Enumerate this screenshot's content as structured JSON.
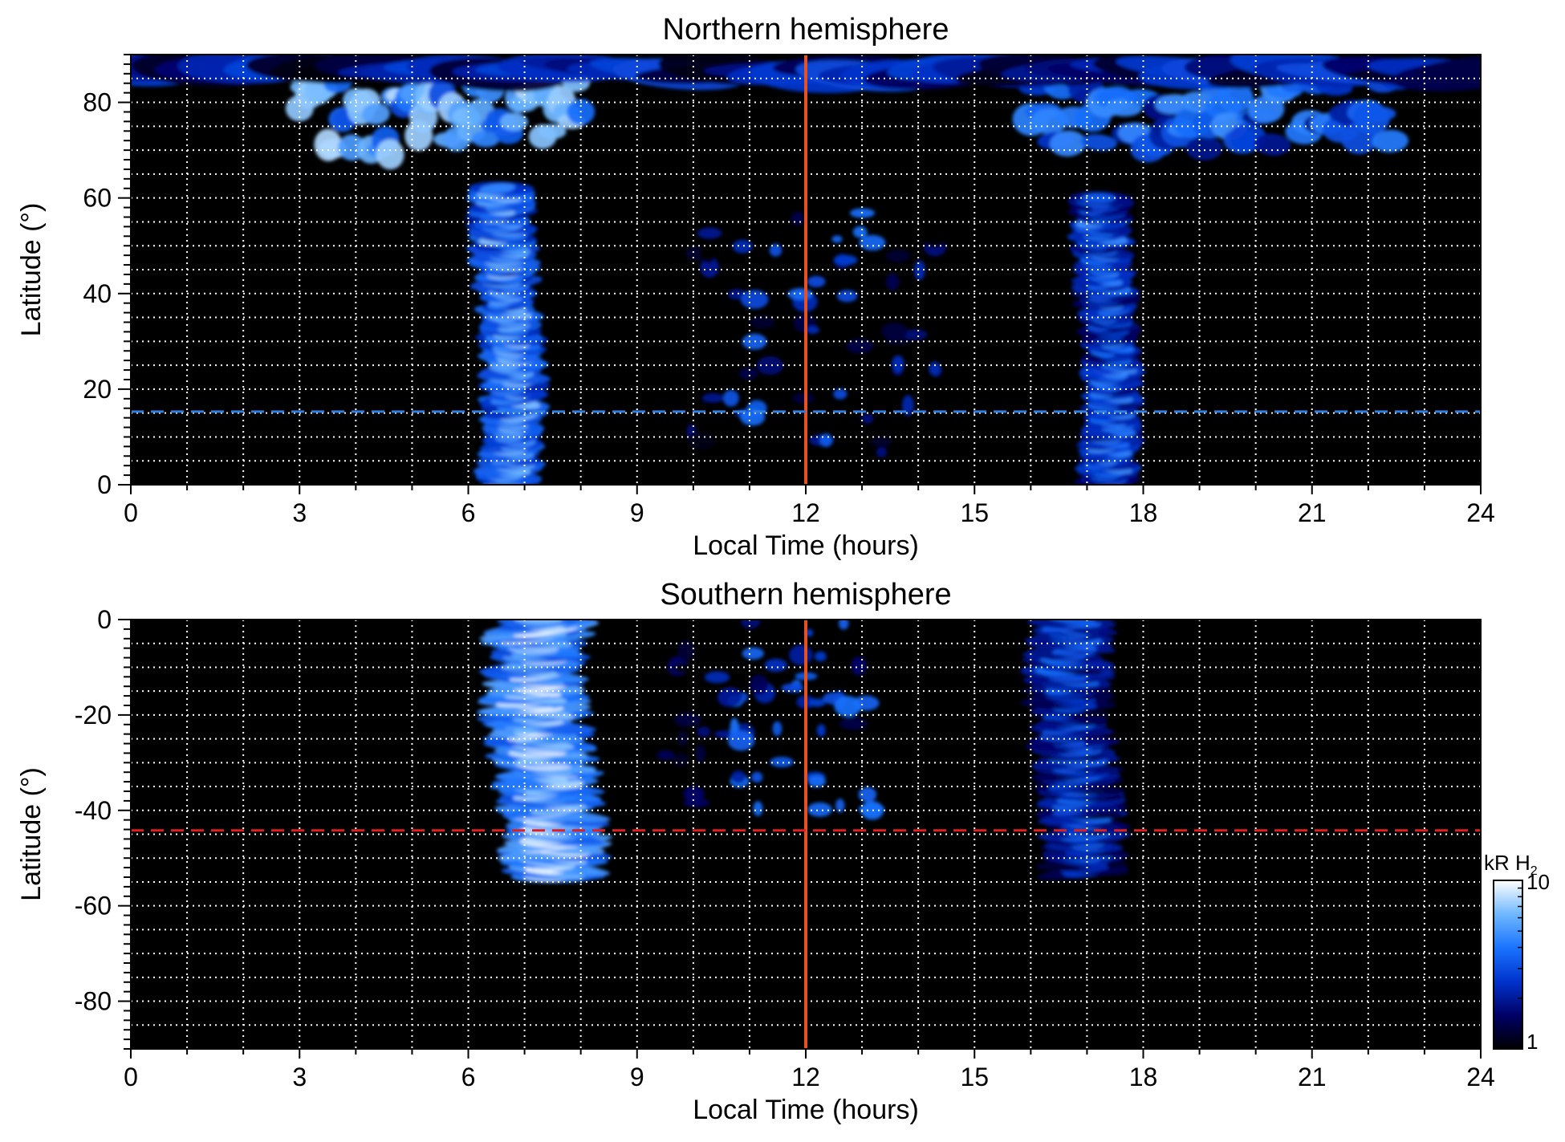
{
  "chart_data": [
    {
      "type": "heatmap",
      "title": "Northern hemisphere",
      "xlabel": "Local Time (hours)",
      "ylabel": "Latitude (°)",
      "xlim": [
        0,
        24
      ],
      "ylim": [
        0,
        90
      ],
      "xticks": [
        0,
        3,
        6,
        9,
        12,
        15,
        18,
        21,
        24
      ],
      "xtick_labels": [
        "0",
        "3",
        "6",
        "9",
        "12",
        "15",
        "18",
        "21",
        "24"
      ],
      "yticks": [
        0,
        20,
        40,
        60,
        80
      ],
      "ytick_labels": [
        "0",
        "20",
        "40",
        "60",
        "80"
      ],
      "grid": true,
      "grid_x_step": 1,
      "grid_y_step": 5,
      "reference_lines": [
        {
          "orientation": "vertical",
          "value": 12,
          "style": "solid",
          "color": "#e8501f"
        },
        {
          "orientation": "horizontal",
          "value": 15.3,
          "style": "dashed",
          "color": "#2f7fe0"
        }
      ],
      "emission_regions": [
        {
          "region": "dawn band",
          "lt_range": [
            6.0,
            7.4
          ],
          "lat_range": [
            0,
            62
          ],
          "peak_kR": 7
        },
        {
          "region": "dawn high-latitude arc",
          "lt_range": [
            3.0,
            8.0
          ],
          "lat_range": [
            60,
            86
          ],
          "peak_kR": 8
        },
        {
          "region": "dusk band",
          "lt_range": [
            16.7,
            18.0
          ],
          "lat_range": [
            0,
            60
          ],
          "peak_kR": 5
        },
        {
          "region": "dusk high-latitude arc",
          "lt_range": [
            16.0,
            22.5
          ],
          "lat_range": [
            62,
            86
          ],
          "peak_kR": 5
        },
        {
          "region": "polar cap",
          "lt_range": [
            0,
            24
          ],
          "lat_range": [
            84,
            88
          ],
          "peak_kR": 3
        },
        {
          "region": "noon patches",
          "lt_range": [
            9.5,
            14.5
          ],
          "lat_range": [
            5,
            58
          ],
          "peak_kR": 4
        }
      ]
    },
    {
      "type": "heatmap",
      "title": "Southern hemisphere",
      "xlabel": "Local Time (hours)",
      "ylabel": "Latitude (°)",
      "xlim": [
        0,
        24
      ],
      "ylim": [
        -90,
        0
      ],
      "xticks": [
        0,
        3,
        6,
        9,
        12,
        15,
        18,
        21,
        24
      ],
      "xtick_labels": [
        "0",
        "3",
        "6",
        "9",
        "12",
        "15",
        "18",
        "21",
        "24"
      ],
      "yticks": [
        0,
        -20,
        -40,
        -60,
        -80
      ],
      "ytick_labels": [
        "0",
        "-20",
        "-40",
        "-60",
        "-80"
      ],
      "grid": true,
      "grid_x_step": 1,
      "grid_y_step": 5,
      "reference_lines": [
        {
          "orientation": "vertical",
          "value": 12,
          "style": "solid",
          "color": "#e8501f"
        },
        {
          "orientation": "horizontal",
          "value": -44.2,
          "style": "dashed",
          "color": "#e02020"
        }
      ],
      "emission_regions": [
        {
          "region": "dawn band",
          "lt_range": [
            6.2,
            8.5
          ],
          "lat_range": [
            -54,
            0
          ],
          "peak_kR": 10
        },
        {
          "region": "dusk band",
          "lt_range": [
            15.9,
            17.7
          ],
          "lat_range": [
            -53,
            0
          ],
          "peak_kR": 4
        },
        {
          "region": "noon patches",
          "lt_range": [
            9.5,
            13.5
          ],
          "lat_range": [
            -40,
            0
          ],
          "peak_kR": 4
        }
      ]
    }
  ],
  "colorbar": {
    "label_main": "kR H",
    "label_sub": "2",
    "min_label": "1",
    "max_label": "10",
    "scale": "log",
    "range": [
      1,
      10
    ],
    "colors": [
      "#000000",
      "#000066",
      "#0033cc",
      "#1a73ff",
      "#6fb8ff",
      "#ffffff"
    ]
  }
}
